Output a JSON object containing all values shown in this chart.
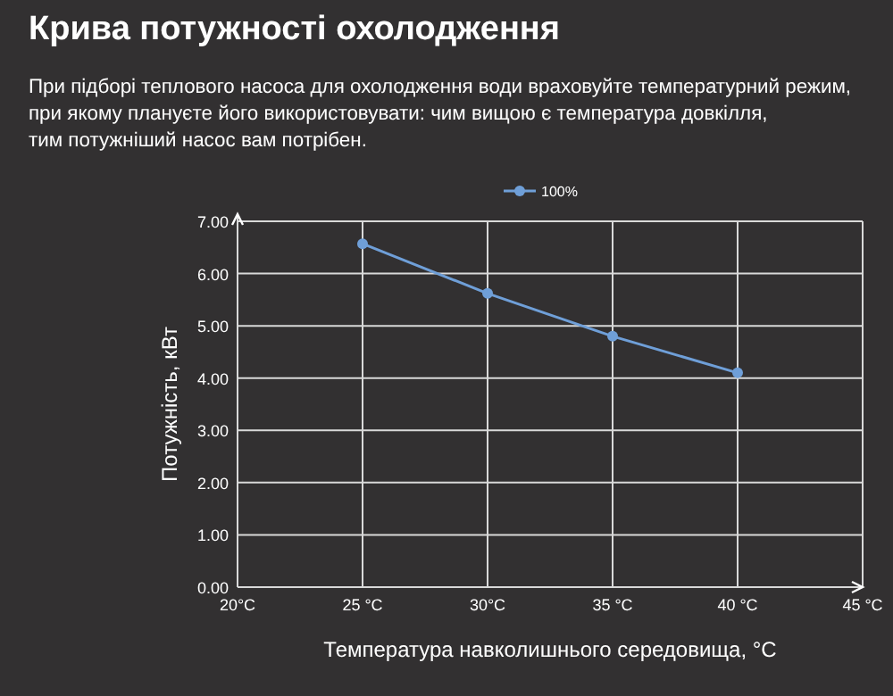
{
  "chart_data": {
    "type": "line",
    "title": "Крива потужності охолодження",
    "subtitle": "При підборі теплового насоса для охолодження води враховуйте температурний режим,\nпри якому плануєте його використовувати: чим вищою є температура довкілля,\nтим потужніший насос вам потрібен.",
    "xlabel": "Температура навколишнього середовища, °C",
    "ylabel": "Потужність, кВт",
    "x": [
      25,
      30,
      35,
      40
    ],
    "series": [
      {
        "name": "100%",
        "color": "#6f9fd8",
        "values": [
          6.57,
          5.62,
          4.8,
          4.1
        ]
      }
    ],
    "xlim": [
      20,
      45
    ],
    "xticks": [
      {
        "value": 20,
        "label": "20°C"
      },
      {
        "value": 25,
        "label": "25 °C"
      },
      {
        "value": 30,
        "label": "30°C"
      },
      {
        "value": 35,
        "label": "35 °C"
      },
      {
        "value": 40,
        "label": "40 °C"
      },
      {
        "value": 45,
        "label": "45 °C"
      }
    ],
    "ylim": [
      0,
      7
    ],
    "yticks": [
      {
        "value": 0,
        "label": "0.00"
      },
      {
        "value": 1,
        "label": "1.00"
      },
      {
        "value": 2,
        "label": "2.00"
      },
      {
        "value": 3,
        "label": "3.00"
      },
      {
        "value": 4,
        "label": "4.00"
      },
      {
        "value": 5,
        "label": "5.00"
      },
      {
        "value": 6,
        "label": "6.00"
      },
      {
        "value": 7,
        "label": "7.00"
      }
    ],
    "grid": true,
    "legend": "top",
    "marker": "circle",
    "line_style": "solid"
  }
}
